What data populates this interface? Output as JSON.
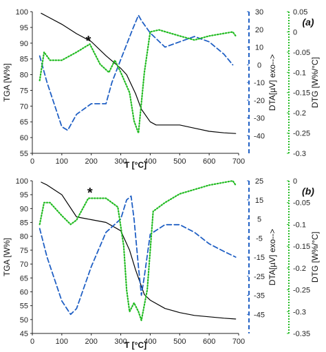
{
  "chart_data": [
    {
      "type": "line",
      "panel_label": "(a)",
      "xlabel": "T [°C]",
      "xlim": [
        0,
        700
      ],
      "xticks": [
        0,
        100,
        200,
        300,
        400,
        500,
        600,
        700
      ],
      "annotation": "*",
      "annotation_at": [
        195,
        91
      ],
      "axes": {
        "tga": {
          "label": "TGA [W%]",
          "lim": [
            55,
            100
          ],
          "ticks": [
            55,
            60,
            65,
            70,
            75,
            80,
            85,
            90,
            95,
            100
          ]
        },
        "dta": {
          "label": "DTA[µV] exo-->",
          "lim": [
            -50,
            30
          ],
          "ticks": [
            -40,
            -30,
            -20,
            -10,
            0,
            10,
            20,
            30
          ]
        },
        "dtg": {
          "label": "DTG [W%/°C]",
          "lim": [
            -0.3,
            0.05
          ],
          "ticks": [
            -0.3,
            -0.25,
            -0.2,
            -0.15,
            -0.1,
            -0.05,
            0,
            0.05
          ]
        }
      },
      "series": [
        {
          "axis": "tga",
          "color": "#000000",
          "style": "solid",
          "x": [
            30,
            50,
            100,
            150,
            200,
            250,
            300,
            320,
            350,
            370,
            400,
            420,
            450,
            500,
            550,
            600,
            650,
            690
          ],
          "y": [
            99.5,
            98.5,
            96,
            93,
            90.5,
            86,
            82,
            80,
            74,
            69,
            65,
            64,
            64,
            64,
            63,
            62,
            61.5,
            61.3
          ]
        },
        {
          "axis": "dta",
          "color": "#1f5fc4",
          "style": "dashed",
          "x": [
            25,
            50,
            100,
            120,
            150,
            200,
            250,
            270,
            300,
            340,
            360,
            370,
            400,
            450,
            500,
            550,
            600,
            650,
            680
          ],
          "y": [
            5,
            -10,
            -35,
            -37,
            -28,
            -22,
            -22,
            -10,
            3,
            20,
            28,
            25,
            18,
            10,
            13,
            16,
            13,
            6,
            0
          ]
        },
        {
          "axis": "dtg",
          "color": "#22bb22",
          "style": "dotted",
          "x": [
            25,
            40,
            60,
            100,
            150,
            195,
            230,
            260,
            280,
            300,
            330,
            345,
            360,
            380,
            400,
            430,
            500,
            550,
            600,
            680,
            690
          ],
          "y": [
            -0.12,
            -0.05,
            -0.07,
            -0.07,
            -0.05,
            -0.03,
            -0.08,
            -0.1,
            -0.07,
            -0.1,
            -0.15,
            -0.22,
            -0.25,
            -0.1,
            0,
            0.005,
            -0.01,
            -0.02,
            -0.01,
            0,
            -0.01
          ]
        }
      ]
    },
    {
      "type": "line",
      "panel_label": "(b)",
      "xlabel": "T [°C]",
      "xlim": [
        0,
        700
      ],
      "xticks": [
        0,
        100,
        200,
        300,
        400,
        500,
        600,
        700
      ],
      "annotation": "*",
      "annotation_at": [
        200,
        96
      ],
      "axes": {
        "tga": {
          "label": "TGA [W%]",
          "lim": [
            45,
            100
          ],
          "ticks": [
            45,
            50,
            55,
            60,
            65,
            70,
            75,
            80,
            85,
            90,
            95,
            100
          ]
        },
        "dta": {
          "label": "DTA[µV] exo-->",
          "lim": [
            -55,
            25
          ],
          "ticks": [
            -45,
            -35,
            -25,
            -15,
            -5,
            5,
            15,
            25
          ]
        },
        "dtg": {
          "label": "DTG [W%/°C]",
          "lim": [
            -0.35,
            0
          ],
          "ticks": [
            -0.35,
            -0.3,
            -0.25,
            -0.2,
            -0.15,
            -0.1,
            -0.05,
            0
          ]
        }
      },
      "series": [
        {
          "axis": "tga",
          "color": "#000000",
          "style": "solid",
          "x": [
            30,
            50,
            100,
            150,
            200,
            250,
            300,
            330,
            350,
            380,
            400,
            450,
            500,
            550,
            600,
            650,
            690
          ],
          "y": [
            99.5,
            98.5,
            95,
            87,
            86,
            85,
            82,
            75,
            68,
            59,
            57,
            54,
            52.5,
            51.5,
            51,
            50.5,
            50.2
          ]
        },
        {
          "axis": "dta",
          "color": "#1f5fc4",
          "style": "dashed",
          "x": [
            25,
            50,
            100,
            130,
            150,
            200,
            250,
            300,
            320,
            335,
            345,
            360,
            370,
            380,
            400,
            450,
            500,
            550,
            600,
            650,
            690
          ],
          "y": [
            0,
            -15,
            -38,
            -45,
            -42,
            -20,
            -2,
            5,
            15,
            17,
            5,
            -20,
            -35,
            -25,
            -3,
            2,
            2,
            -2,
            -8,
            -12,
            -15
          ]
        },
        {
          "axis": "dtg",
          "color": "#22bb22",
          "style": "dotted",
          "x": [
            25,
            40,
            60,
            100,
            130,
            150,
            190,
            210,
            250,
            290,
            310,
            320,
            330,
            345,
            360,
            370,
            390,
            410,
            450,
            500,
            600,
            680,
            690
          ],
          "y": [
            -0.1,
            -0.05,
            -0.05,
            -0.08,
            -0.1,
            -0.09,
            -0.04,
            -0.04,
            -0.04,
            -0.06,
            -0.15,
            -0.25,
            -0.3,
            -0.28,
            -0.3,
            -0.32,
            -0.25,
            -0.07,
            -0.05,
            -0.03,
            -0.01,
            0,
            -0.01
          ]
        }
      ]
    }
  ]
}
